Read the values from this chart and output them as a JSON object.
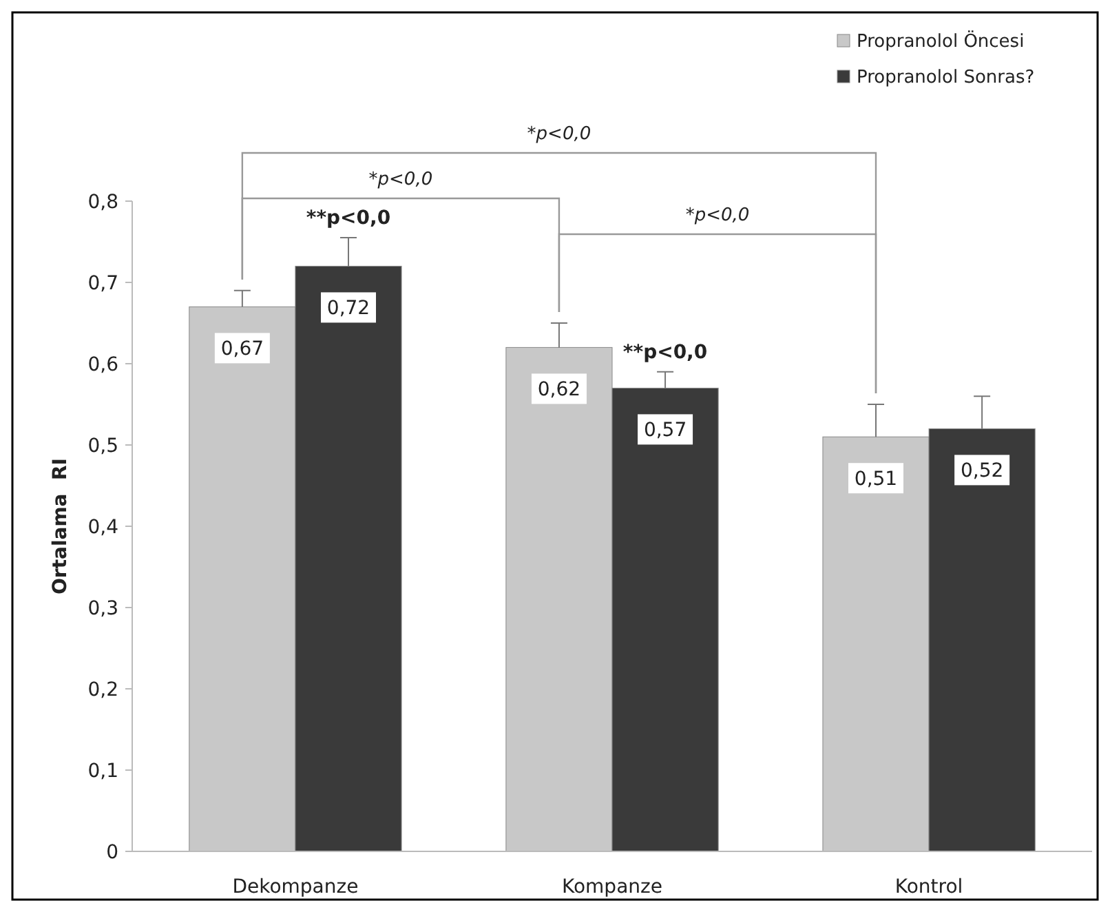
{
  "chart_data": {
    "type": "bar",
    "ylabel": "Ortalama  RI",
    "categories": [
      "Dekompanze",
      "Kompanze",
      "Kontrol"
    ],
    "series": [
      {
        "name": "Propranolol Öncesi",
        "color": "#c8c8c8",
        "values": [
          0.67,
          0.62,
          0.51
        ],
        "errors": [
          0.02,
          0.03,
          0.04
        ],
        "value_labels": [
          "0,67",
          "0,62",
          "0,51"
        ]
      },
      {
        "name": "Propranolol Sonras?",
        "color": "#3a3a3a",
        "values": [
          0.72,
          0.57,
          0.52
        ],
        "errors": [
          0.035,
          0.02,
          0.04
        ],
        "value_labels": [
          "0,72",
          "0,57",
          "0,52"
        ]
      }
    ],
    "ylim": [
      0,
      0.8
    ],
    "yticks": [
      {
        "value": 0,
        "label": "0"
      },
      {
        "value": 0.1,
        "label": "0,1"
      },
      {
        "value": 0.2,
        "label": "0,2"
      },
      {
        "value": 0.3,
        "label": "0,3"
      },
      {
        "value": 0.4,
        "label": "0,4"
      },
      {
        "value": 0.5,
        "label": "0,5"
      },
      {
        "value": 0.6,
        "label": "0,6"
      },
      {
        "value": 0.7,
        "label": "0,7"
      },
      {
        "value": 0.8,
        "label": "0,8"
      }
    ],
    "grid": false,
    "legend": "top right",
    "annotations": [
      "*p<0,0",
      "*p<0,0",
      "*p<0,0",
      "**p<0,0",
      "**p<0,0"
    ]
  }
}
